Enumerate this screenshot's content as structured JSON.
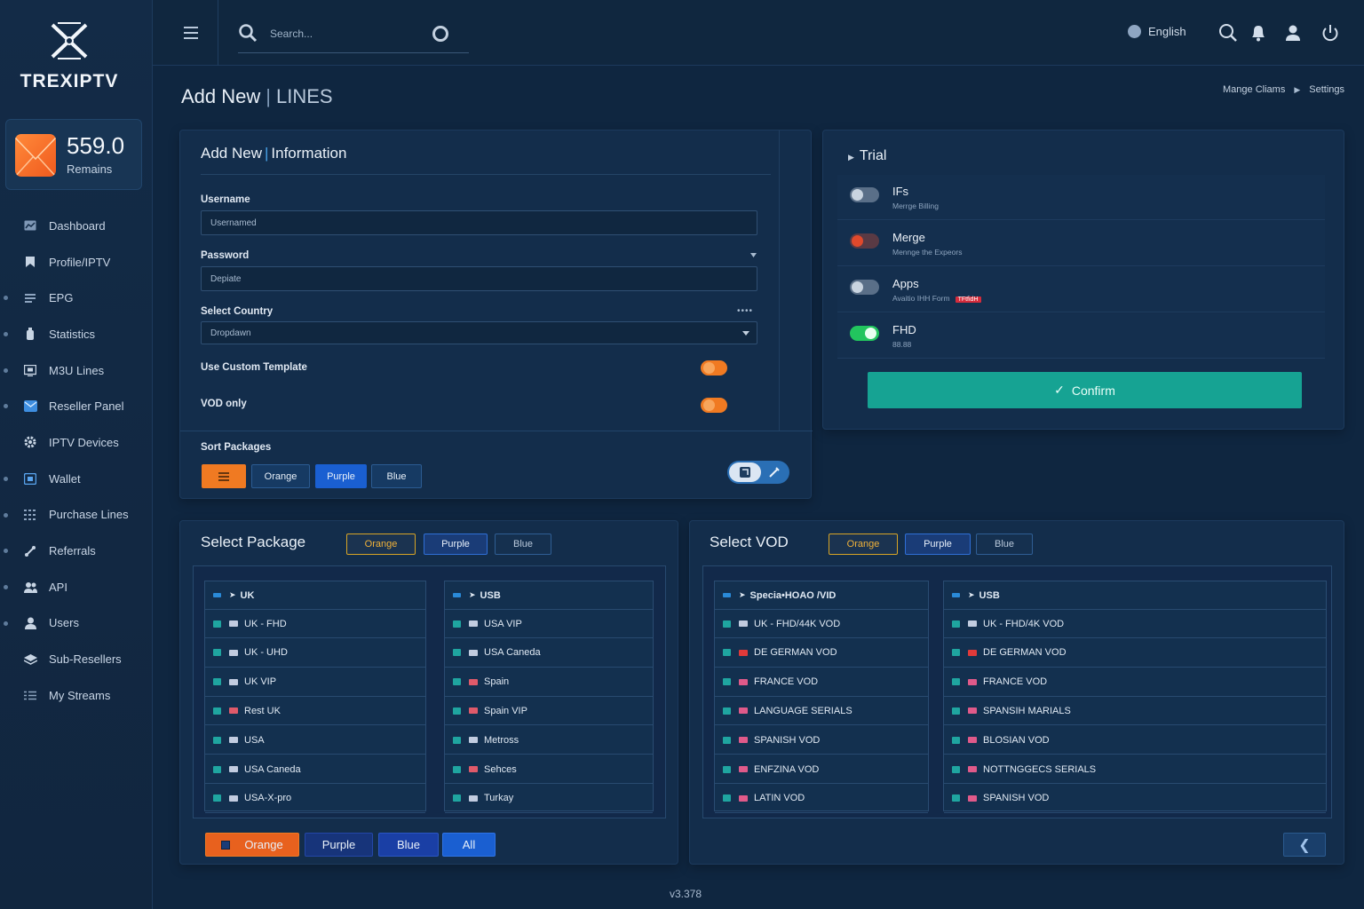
{
  "brand": {
    "name": "TREXIPTV"
  },
  "balance": {
    "value": "559.0",
    "label": "Remains"
  },
  "sidebar": {
    "items": [
      {
        "label": "Dashboard",
        "icon": "dashboard-icon",
        "dot": false
      },
      {
        "label": "Profile/IPTV",
        "icon": "bookmark-icon",
        "dot": false
      },
      {
        "label": "EPG",
        "icon": "list-icon",
        "dot": true
      },
      {
        "label": "Statistics",
        "icon": "bottle-icon",
        "dot": true
      },
      {
        "label": "M3U Lines",
        "icon": "monitor-icon",
        "dot": true
      },
      {
        "label": "Reseller Panel",
        "icon": "mail-icon",
        "dot": true
      },
      {
        "label": "IPTV Devices",
        "icon": "gear-icon",
        "dot": false
      },
      {
        "label": "Wallet",
        "icon": "wallet-icon",
        "dot": true
      },
      {
        "label": "Purchase Lines",
        "icon": "grid-icon",
        "dot": true
      },
      {
        "label": "Referrals",
        "icon": "link-icon",
        "dot": true
      },
      {
        "label": "API",
        "icon": "users-group-icon",
        "dot": true
      },
      {
        "label": "Users",
        "icon": "user-icon",
        "dot": true
      },
      {
        "label": "Sub-Resellers",
        "icon": "layers-icon",
        "dot": false
      },
      {
        "label": "My Streams",
        "icon": "menu-list-icon",
        "dot": false
      }
    ]
  },
  "topbar": {
    "search_placeholder": "Search...",
    "language": "English"
  },
  "page": {
    "title": "Add New",
    "subtitle": "LINES",
    "breadcrumb": [
      "Mange Cliams",
      "Settings"
    ],
    "version": "v3.378"
  },
  "info_panel": {
    "title": "Add New",
    "title_accent": "Information",
    "username_label": "Username",
    "username_placeholder": "Usernamed",
    "password_label": "Password",
    "password_placeholder": "Depiate",
    "country_label": "Select Country",
    "country_value": "Dropdawn",
    "custom_template_label": "Use Custom Template",
    "vod_only_label": "VOD only",
    "sort_label": "Sort Packages",
    "sort_chips": [
      "Orange",
      "Purple",
      "Blue"
    ]
  },
  "trial_panel": {
    "title": "Trial",
    "rows": [
      {
        "name": "IFs",
        "desc": "Merrge Billing",
        "tag": "",
        "state": "off"
      },
      {
        "name": "Merge",
        "desc": "Mennge the Expeors",
        "tag": "",
        "state": "red"
      },
      {
        "name": "Apps",
        "desc": "Avaitio IHH Form",
        "tag": "TFtfidH",
        "state": "off"
      },
      {
        "name": "FHD",
        "desc": "88.88",
        "tag": "",
        "state": "on"
      }
    ],
    "confirm_label": "Confirm"
  },
  "package_panel": {
    "title": "Select Package",
    "tabs": [
      "Orange",
      "Purple",
      "Blue"
    ],
    "left_header": "UK",
    "left_items": [
      "UK - FHD",
      "UK - UHD",
      "UK VIP",
      "Rest UK",
      "USA",
      "USA Caneda",
      "USA-X-pro"
    ],
    "right_header": "USB",
    "right_items": [
      "USA VIP",
      "USA Caneda",
      "Spain",
      "Spain VIP",
      "Metross",
      "Sehces",
      "Turkay"
    ],
    "footer_buttons": [
      "Orange",
      "Purple",
      "Blue",
      "All"
    ]
  },
  "vod_panel": {
    "title": "Select VOD",
    "tabs": [
      "Orange",
      "Purple",
      "Blue"
    ],
    "left_header": "Specia•HOAO /VID",
    "left_items": [
      "UK - FHD/44K VOD",
      "DE GERMAN VOD",
      "FRANCE VOD",
      "LANGUAGE SERIALS",
      "SPANISH VOD",
      "ENFZINA VOD",
      "LATIN VOD"
    ],
    "right_header": "USB",
    "right_items": [
      "UK - FHD/4K VOD",
      "DE GERMAN VOD",
      "FRANCE VOD",
      "SPANSIH MARIALS",
      "BLOSIAN VOD",
      "NOTTNGGECS SERIALS",
      "SPANISH VOD"
    ]
  },
  "colors": {
    "accent_orange": "#f07a22",
    "accent_teal": "#16a393",
    "accent_blue": "#1a5fd1",
    "toggle_green": "#22c55e",
    "toggle_red": "#e0492c"
  }
}
